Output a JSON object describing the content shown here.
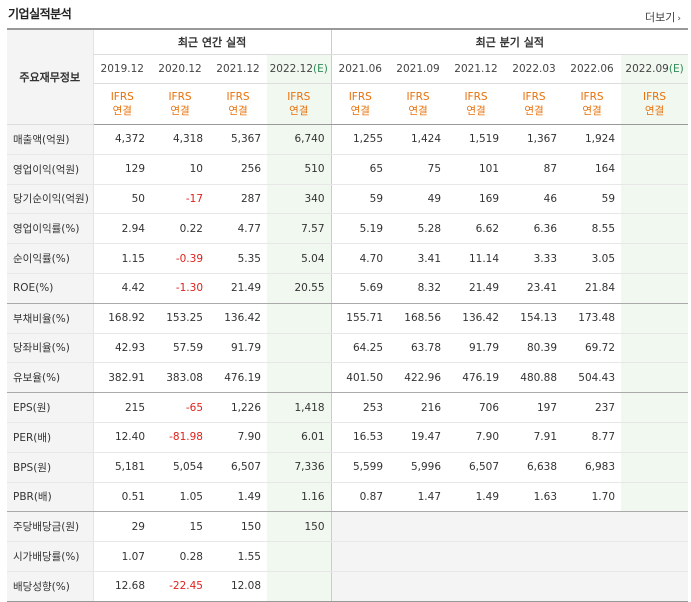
{
  "header": {
    "title": "기업실적분석",
    "more_label": "더보기",
    "more_arrow": "›"
  },
  "table": {
    "corner_label": "주요재무정보",
    "annual_header": "최근 연간 실적",
    "quarter_header": "최근 분기 실적",
    "annual_periods": [
      "2019.12",
      "2020.12",
      "2021.12"
    ],
    "annual_est": {
      "period": "2022.12",
      "mark": "(E)"
    },
    "quarter_periods": [
      "2021.06",
      "2021.09",
      "2021.12",
      "2022.03",
      "2022.06"
    ],
    "quarter_est": {
      "period": "2022.09",
      "mark": "(E)"
    },
    "standard": {
      "line1": "IFRS",
      "line2": "연결"
    },
    "rows": [
      {
        "label": "매출액(억원)",
        "annual": [
          "4,372",
          "4,318",
          "5,367",
          "6,740"
        ],
        "quarter": [
          "1,255",
          "1,424",
          "1,519",
          "1,367",
          "1,924",
          ""
        ]
      },
      {
        "label": "영업이익(억원)",
        "annual": [
          "129",
          "10",
          "256",
          "510"
        ],
        "quarter": [
          "65",
          "75",
          "101",
          "87",
          "164",
          ""
        ]
      },
      {
        "label": "당기순이익(억원)",
        "annual": [
          "50",
          "-17",
          "287",
          "340"
        ],
        "quarter": [
          "59",
          "49",
          "169",
          "46",
          "59",
          ""
        ]
      },
      {
        "label": "영업이익률(%)",
        "annual": [
          "2.94",
          "0.22",
          "4.77",
          "7.57"
        ],
        "quarter": [
          "5.19",
          "5.28",
          "6.62",
          "6.36",
          "8.55",
          ""
        ]
      },
      {
        "label": "순이익률(%)",
        "annual": [
          "1.15",
          "-0.39",
          "5.35",
          "5.04"
        ],
        "quarter": [
          "4.70",
          "3.41",
          "11.14",
          "3.33",
          "3.05",
          ""
        ]
      },
      {
        "label": "ROE(%)",
        "annual": [
          "4.42",
          "-1.30",
          "21.49",
          "20.55"
        ],
        "quarter": [
          "5.69",
          "8.32",
          "21.49",
          "23.41",
          "21.84",
          ""
        ]
      },
      {
        "label": "부채비율(%)",
        "annual": [
          "168.92",
          "153.25",
          "136.42",
          ""
        ],
        "quarter": [
          "155.71",
          "168.56",
          "136.42",
          "154.13",
          "173.48",
          ""
        ]
      },
      {
        "label": "당좌비율(%)",
        "annual": [
          "42.93",
          "57.59",
          "91.79",
          ""
        ],
        "quarter": [
          "64.25",
          "63.78",
          "91.79",
          "80.39",
          "69.72",
          ""
        ]
      },
      {
        "label": "유보율(%)",
        "annual": [
          "382.91",
          "383.08",
          "476.19",
          ""
        ],
        "quarter": [
          "401.50",
          "422.96",
          "476.19",
          "480.88",
          "504.43",
          ""
        ]
      },
      {
        "label": "EPS(원)",
        "annual": [
          "215",
          "-65",
          "1,226",
          "1,418"
        ],
        "quarter": [
          "253",
          "216",
          "706",
          "197",
          "237",
          ""
        ]
      },
      {
        "label": "PER(배)",
        "annual": [
          "12.40",
          "-81.98",
          "7.90",
          "6.01"
        ],
        "quarter": [
          "16.53",
          "19.47",
          "7.90",
          "7.91",
          "8.77",
          ""
        ]
      },
      {
        "label": "BPS(원)",
        "annual": [
          "5,181",
          "5,054",
          "6,507",
          "7,336"
        ],
        "quarter": [
          "5,599",
          "5,996",
          "6,507",
          "6,638",
          "6,983",
          ""
        ]
      },
      {
        "label": "PBR(배)",
        "annual": [
          "0.51",
          "1.05",
          "1.49",
          "1.16"
        ],
        "quarter": [
          "0.87",
          "1.47",
          "1.49",
          "1.63",
          "1.70",
          ""
        ]
      },
      {
        "label": "주당배당금(원)",
        "annual": [
          "29",
          "15",
          "150",
          "150"
        ],
        "quarter": [
          "",
          "",
          "",
          "",
          "",
          ""
        ]
      },
      {
        "label": "시가배당률(%)",
        "annual": [
          "1.07",
          "0.28",
          "1.55",
          ""
        ],
        "quarter": [
          "",
          "",
          "",
          "",
          "",
          ""
        ]
      },
      {
        "label": "배당성향(%)",
        "annual": [
          "12.68",
          "-22.45",
          "12.08",
          ""
        ],
        "quarter": [
          "",
          "",
          "",
          "",
          "",
          ""
        ]
      }
    ]
  }
}
